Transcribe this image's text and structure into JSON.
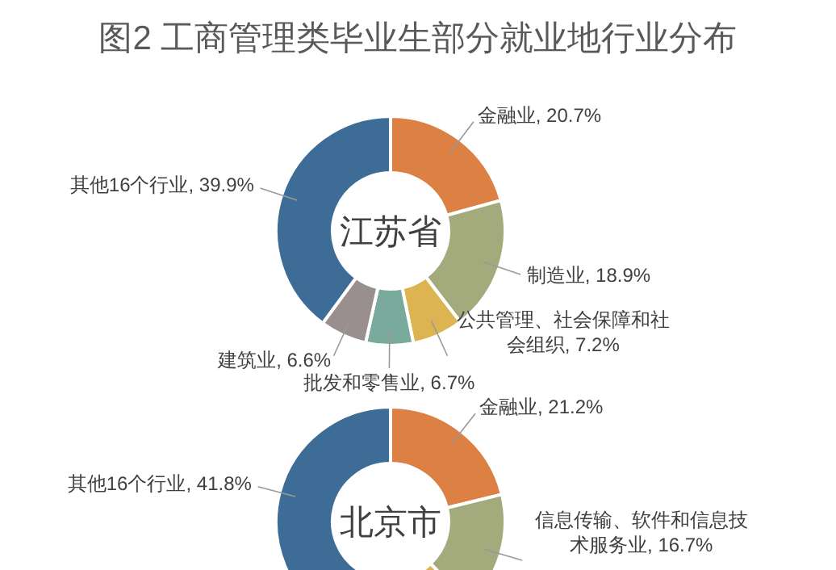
{
  "chart_data": [
    {
      "type": "donut",
      "title": "图2 工商管理类毕业生部分就业地行业分布",
      "subtitle": "江苏省",
      "categories": [
        "金融业",
        "制造业",
        "公共管理、社会保障和社会组织",
        "批发和零售业",
        "建筑业",
        "其他16个行业"
      ],
      "values": [
        20.7,
        18.9,
        7.2,
        6.7,
        6.6,
        39.9
      ],
      "value_labels": [
        "20.7%",
        "18.9%",
        "7.2%",
        "6.7%",
        "6.6%",
        "39.9%"
      ],
      "colors": [
        "#dd8044",
        "#a3ab7c",
        "#dcb552",
        "#79aa9c",
        "#9a8f8f",
        "#3d6d96"
      ]
    },
    {
      "type": "donut",
      "title": "北京市",
      "categories": [
        "金融业",
        "信息传输、软件和信息技术服务业",
        null,
        "其他16个行业"
      ],
      "values": [
        21.2,
        16.7,
        20.3,
        41.8
      ],
      "value_labels": [
        "21.2%",
        "16.7%",
        null,
        "41.8%"
      ],
      "colors": [
        "#dd8044",
        "#a3ab7c",
        "#dcb552",
        "#3d6d96"
      ]
    }
  ]
}
